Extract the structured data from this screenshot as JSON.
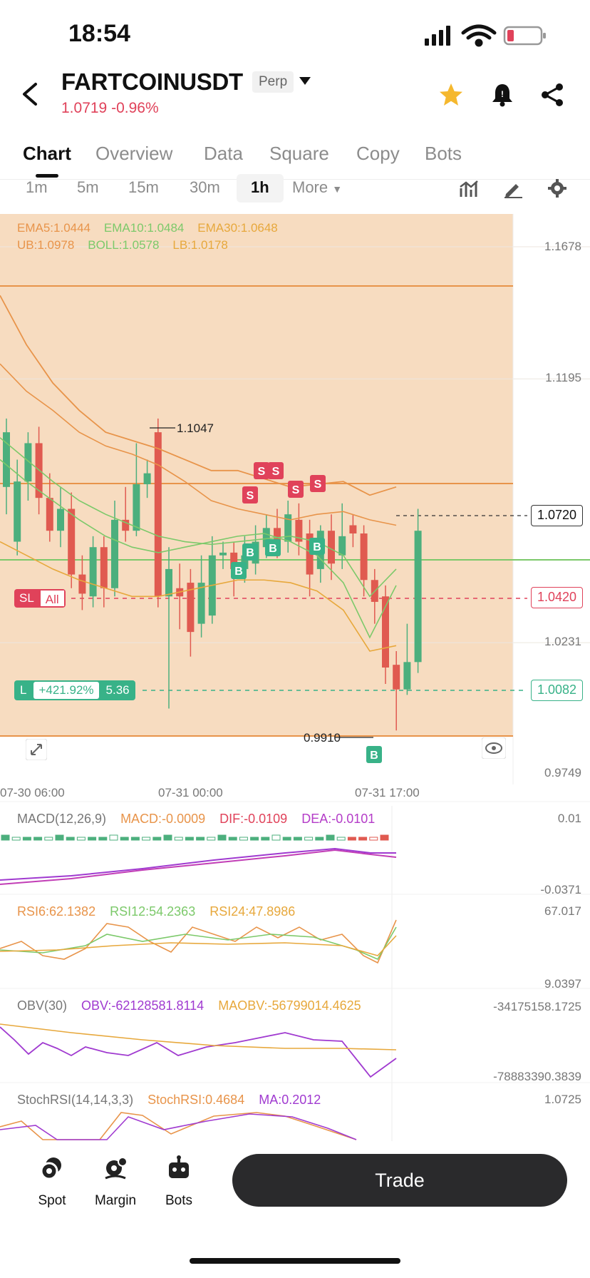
{
  "status": {
    "time": "18:54"
  },
  "header": {
    "pair": "FARTCOINUSDT",
    "perp": "Perp",
    "price": "1.0719",
    "change": "-0.96%"
  },
  "tabs": [
    "Chart",
    "Overview",
    "Data",
    "Square",
    "Copy",
    "Bots"
  ],
  "timeframes": {
    "items": [
      "1m",
      "5m",
      "15m",
      "30m",
      "1h"
    ],
    "active": "1h",
    "more": "More"
  },
  "chart": {
    "legend_line1": {
      "ema5": "EMA5:1.0444",
      "ema10": "EMA10:1.0484",
      "ema30": "EMA30:1.0648"
    },
    "legend_line2": {
      "ub": "UB:1.0978",
      "boll": "BOLL:1.0578",
      "lb": "LB:1.0178"
    },
    "y_axis": [
      "1.1678",
      "1.1195",
      "1.0231",
      "0.9749"
    ],
    "high_label": "1.1047",
    "low_label": "0.9910",
    "x_axis": [
      "07-30 06:00",
      "07-31 00:00",
      "07-31 17:00"
    ],
    "last_price_tag": "1.0720",
    "sl_price_tag": "1.0420",
    "entry_price_tag": "1.0082",
    "sl_badge": {
      "sl": "SL",
      "all": "All"
    },
    "position_badge": {
      "side": "L",
      "pnl": "+421.92%",
      "size": "5.36"
    },
    "buy_marker": "B",
    "sell_marker": "S"
  },
  "macd": {
    "name": "MACD(12,26,9)",
    "macd": "MACD:-0.0009",
    "dif": "DIF:-0.0109",
    "dea": "DEA:-0.0101",
    "axis_top": "0.01",
    "axis_bottom": "-0.0371"
  },
  "rsi": {
    "rsi6": "RSI6:62.1382",
    "rsi12": "RSI12:54.2363",
    "rsi24": "RSI24:47.8986",
    "axis_top": "67.017",
    "axis_bottom": "9.0397"
  },
  "obv": {
    "name": "OBV(30)",
    "obv": "OBV:-62128581.8114",
    "maobv": "MAOBV:-56799014.4625",
    "axis_top": "-34175158.1725",
    "axis_bottom": "-78883390.3839"
  },
  "stochrsi": {
    "name": "StochRSI(14,14,3,3)",
    "stoch": "StochRSI:0.4684",
    "ma": "MA:0.2012",
    "axis_top": "1.0725"
  },
  "bottom_nav": {
    "spot": "Spot",
    "margin": "Margin",
    "bots": "Bots",
    "trade": "Trade"
  },
  "colors": {
    "up": "#4caf7d",
    "down": "#e05a50",
    "chart_bg": "#f7dcc0",
    "ema5": "#e8944a",
    "ema10": "#7cc96a",
    "ema30": "#e7a83c",
    "macd_dif": "#c23eb6",
    "macd_dea": "#a03ad0"
  }
}
